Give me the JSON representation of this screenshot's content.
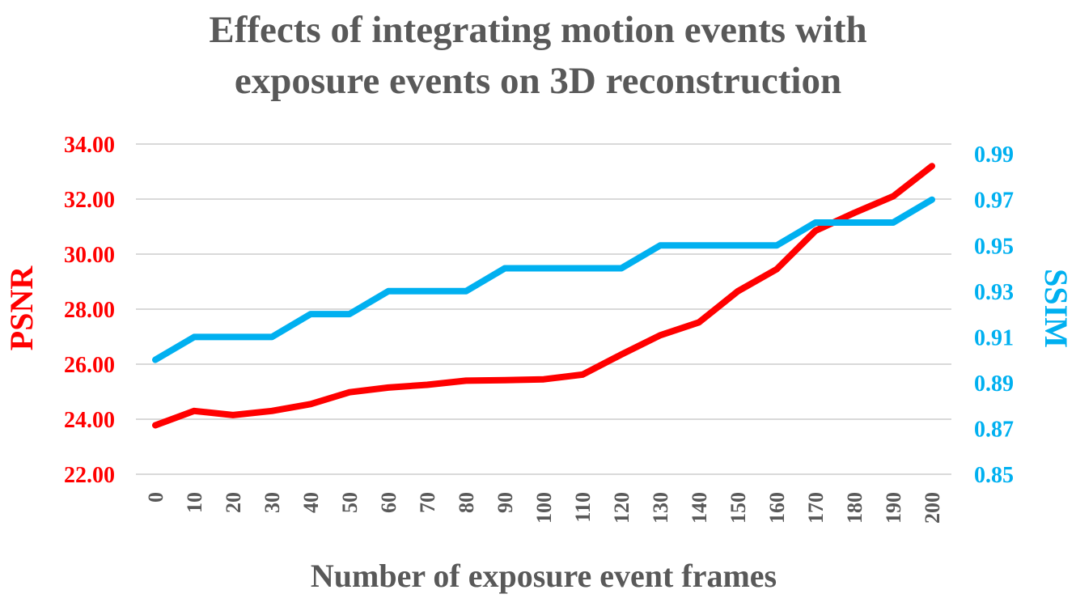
{
  "chart_data": {
    "type": "line",
    "title_line1": "Effects of integrating motion events with",
    "title_line2": "exposure events on 3D reconstruction",
    "xlabel": "Number of exposure event frames",
    "ylabel_left": "PSNR",
    "ylabel_right": "SSIM",
    "x": [
      0,
      10,
      20,
      30,
      40,
      50,
      60,
      70,
      80,
      90,
      100,
      110,
      120,
      130,
      140,
      150,
      160,
      170,
      180,
      190,
      200
    ],
    "x_tick_labels": [
      "0",
      "10",
      "20",
      "30",
      "40",
      "50",
      "60",
      "70",
      "80",
      "90",
      "100",
      "110",
      "120",
      "130",
      "140",
      "150",
      "160",
      "170",
      "180",
      "190",
      "200"
    ],
    "y_left_ticks": [
      "22.00",
      "24.00",
      "26.00",
      "28.00",
      "30.00",
      "32.00",
      "34.00"
    ],
    "y_right_ticks": [
      "0.85",
      "0.87",
      "0.89",
      "0.91",
      "0.93",
      "0.95",
      "0.97",
      "0.99"
    ],
    "ylim_left": [
      22,
      34
    ],
    "ylim_right": [
      0.85,
      0.9943
    ],
    "grid": true,
    "colors": {
      "psnr": "#ff0000",
      "ssim": "#00b0f0",
      "text": "#595959",
      "grid": "#d9d9d9"
    },
    "series": [
      {
        "name": "PSNR",
        "axis": "left",
        "values": [
          23.78,
          24.3,
          24.15,
          24.3,
          24.55,
          24.98,
          25.15,
          25.25,
          25.4,
          25.42,
          25.45,
          25.62,
          26.35,
          27.05,
          27.52,
          28.65,
          29.45,
          30.85,
          31.5,
          32.1,
          33.2
        ]
      },
      {
        "name": "SSIM",
        "axis": "right",
        "values": [
          0.9,
          0.91,
          0.91,
          0.91,
          0.92,
          0.92,
          0.93,
          0.93,
          0.93,
          0.94,
          0.94,
          0.94,
          0.94,
          0.95,
          0.95,
          0.95,
          0.95,
          0.96,
          0.96,
          0.96,
          0.97
        ]
      }
    ]
  }
}
